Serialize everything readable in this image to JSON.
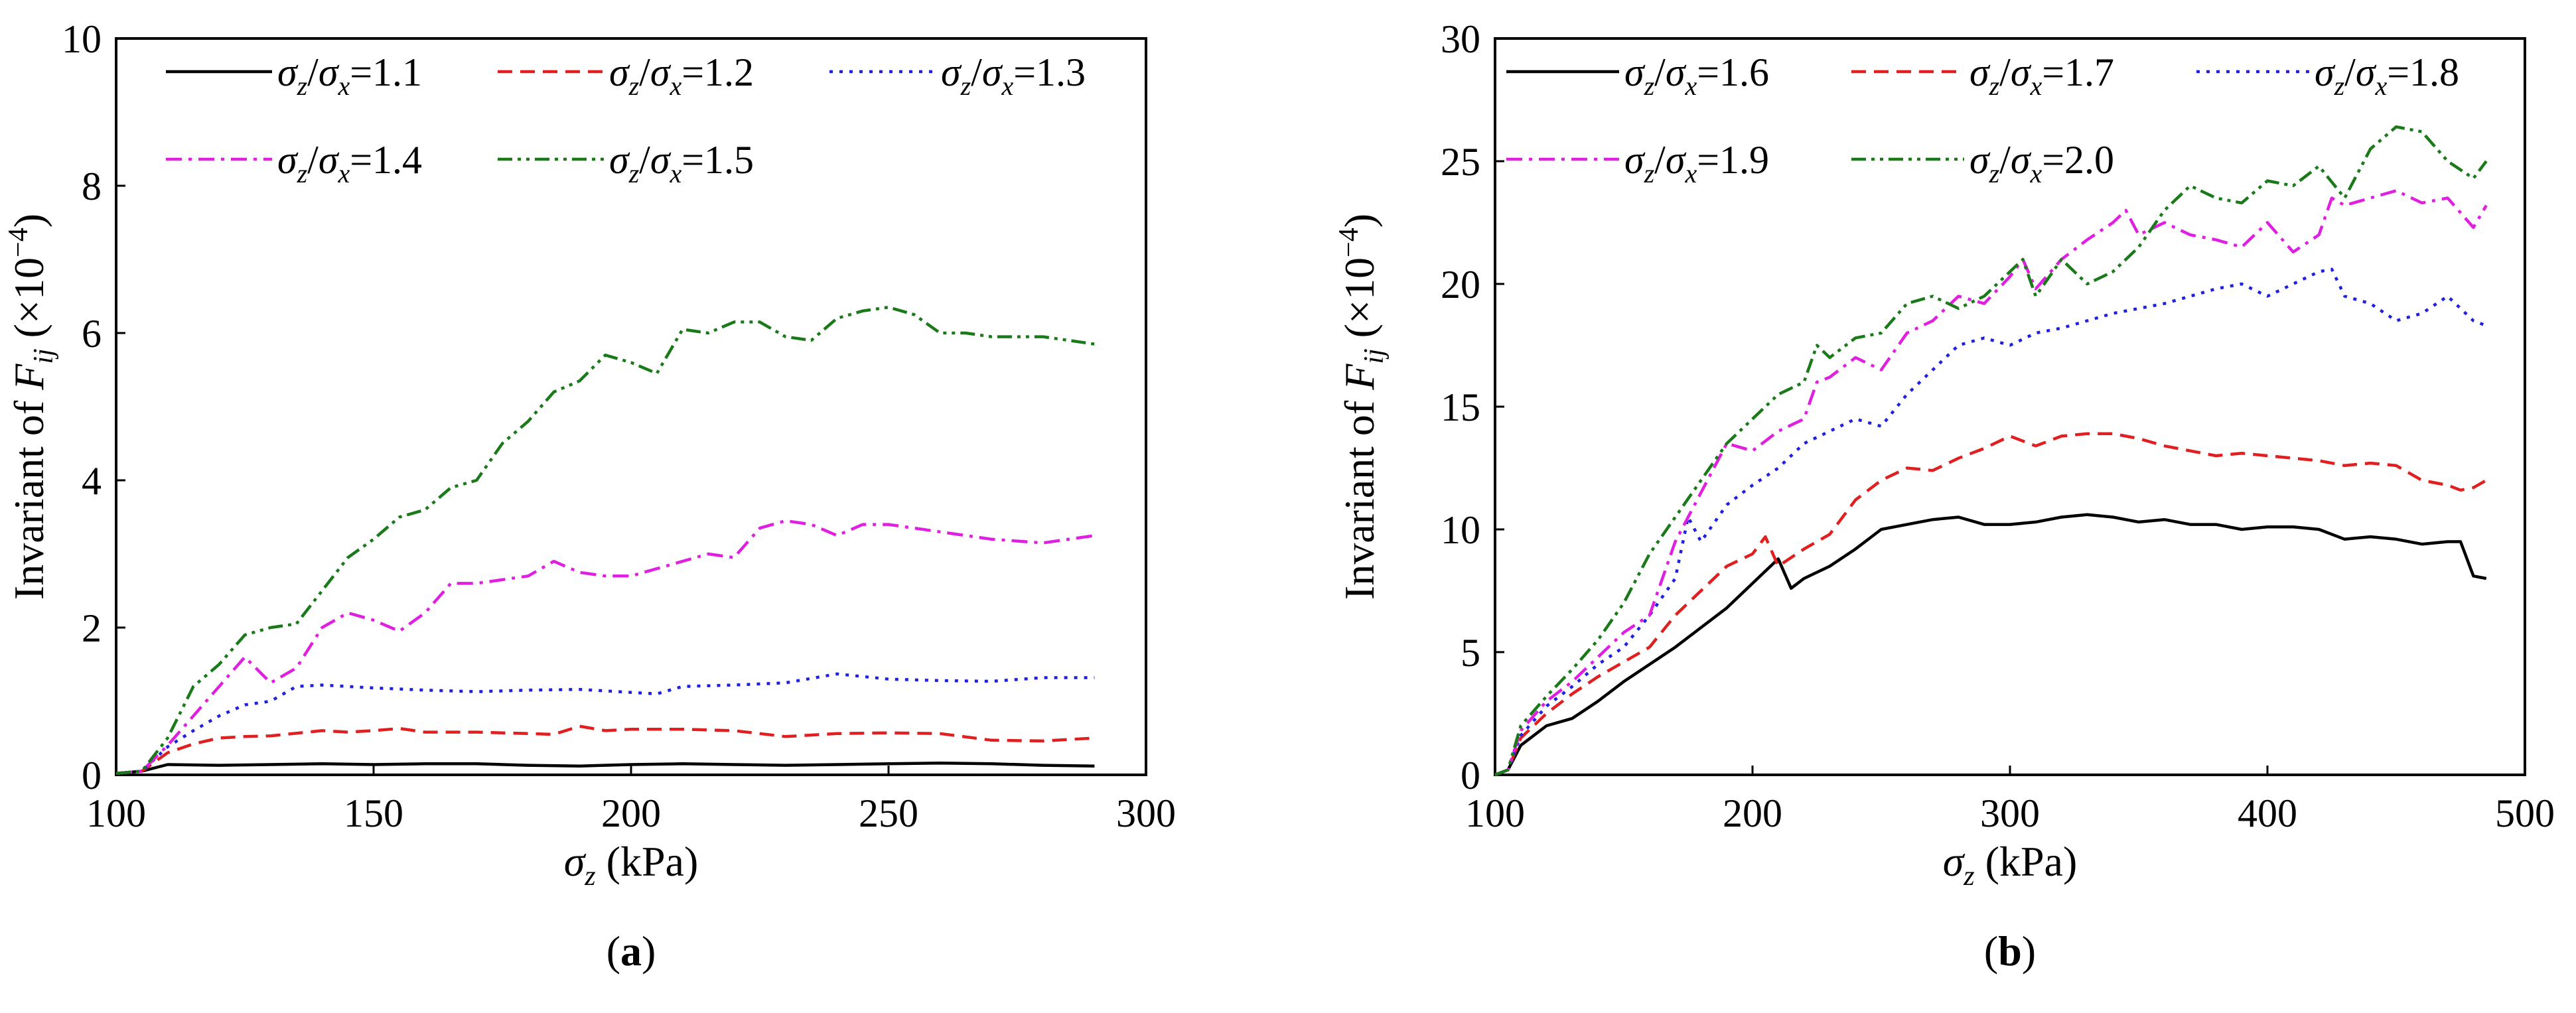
{
  "chart_data": [
    {
      "panel": "a",
      "panel_label": "a",
      "type": "line",
      "xlabel_symbol": "σ",
      "xlabel_sub": "z",
      "xlabel_unit": "(kPa)",
      "ylabel_prefix": "Invariant of F",
      "ylabel_sub": "ij",
      "ylabel_open": "(×10",
      "ylabel_exp": "−4",
      "ylabel_close": ")",
      "xlim": [
        100,
        300
      ],
      "ylim": [
        0,
        10
      ],
      "xticks": [
        "100",
        "150",
        "200",
        "250",
        "300"
      ],
      "yticks": [
        "0",
        "2",
        "4",
        "6",
        "8",
        "10"
      ],
      "legend_layout": [
        3,
        2
      ],
      "series": [
        {
          "name": "σz/σx=1.1",
          "label_value": "=1.1",
          "color": "#000000",
          "dash": "solid",
          "x": [
            100,
            105,
            110,
            120,
            130,
            140,
            150,
            160,
            170,
            180,
            190,
            200,
            210,
            220,
            230,
            240,
            250,
            260,
            270,
            280,
            290
          ],
          "y": [
            0.02,
            0.05,
            0.14,
            0.13,
            0.14,
            0.15,
            0.14,
            0.15,
            0.15,
            0.13,
            0.12,
            0.14,
            0.15,
            0.14,
            0.13,
            0.14,
            0.15,
            0.16,
            0.15,
            0.13,
            0.12
          ]
        },
        {
          "name": "σz/σx=1.2",
          "label_value": "=1.2",
          "color": "#e02020",
          "dash": "dash",
          "x": [
            100,
            105,
            110,
            115,
            120,
            125,
            130,
            140,
            145,
            150,
            155,
            160,
            170,
            180,
            185,
            190,
            195,
            200,
            210,
            220,
            230,
            240,
            250,
            260,
            270,
            280,
            290
          ],
          "y": [
            0.02,
            0.05,
            0.3,
            0.42,
            0.5,
            0.52,
            0.53,
            0.6,
            0.58,
            0.6,
            0.63,
            0.58,
            0.58,
            0.56,
            0.55,
            0.66,
            0.6,
            0.62,
            0.62,
            0.6,
            0.52,
            0.56,
            0.57,
            0.56,
            0.47,
            0.46,
            0.5
          ]
        },
        {
          "name": "σz/σx=1.3",
          "label_value": "=1.3",
          "color": "#2020e0",
          "dash": "dot",
          "x": [
            100,
            105,
            110,
            115,
            120,
            125,
            130,
            135,
            140,
            145,
            150,
            160,
            170,
            180,
            190,
            200,
            205,
            210,
            220,
            230,
            240,
            250,
            260,
            270,
            280,
            290
          ],
          "y": [
            0.02,
            0.05,
            0.38,
            0.6,
            0.8,
            0.95,
            1.0,
            1.2,
            1.22,
            1.2,
            1.18,
            1.15,
            1.13,
            1.15,
            1.16,
            1.12,
            1.1,
            1.2,
            1.22,
            1.25,
            1.37,
            1.3,
            1.28,
            1.27,
            1.32,
            1.32
          ]
        },
        {
          "name": "σz/σx=1.4",
          "label_value": "=1.4",
          "color": "#e020e0",
          "dash": "dashdot",
          "x": [
            100,
            105,
            110,
            115,
            120,
            125,
            130,
            135,
            140,
            145,
            150,
            155,
            160,
            165,
            170,
            180,
            185,
            190,
            195,
            200,
            205,
            210,
            215,
            220,
            225,
            230,
            235,
            240,
            245,
            250,
            260,
            270,
            280,
            290
          ],
          "y": [
            0.02,
            0.05,
            0.4,
            0.8,
            1.2,
            1.6,
            1.25,
            1.45,
            2.0,
            2.2,
            2.1,
            1.95,
            2.2,
            2.6,
            2.6,
            2.7,
            2.9,
            2.75,
            2.7,
            2.7,
            2.8,
            2.9,
            3.0,
            2.95,
            3.35,
            3.45,
            3.4,
            3.25,
            3.4,
            3.4,
            3.3,
            3.2,
            3.15,
            3.25
          ]
        },
        {
          "name": "σz/σx=1.5",
          "label_value": "=1.5",
          "color": "#1a7a1a",
          "dash": "dashdotdot",
          "x": [
            100,
            105,
            110,
            115,
            120,
            125,
            130,
            135,
            140,
            145,
            150,
            155,
            160,
            165,
            170,
            175,
            180,
            185,
            190,
            195,
            200,
            205,
            210,
            215,
            220,
            225,
            230,
            235,
            240,
            245,
            250,
            255,
            260,
            265,
            270,
            275,
            280,
            285,
            290
          ],
          "y": [
            0.02,
            0.05,
            0.5,
            1.2,
            1.5,
            1.9,
            2.0,
            2.05,
            2.5,
            2.95,
            3.2,
            3.5,
            3.6,
            3.9,
            4.0,
            4.5,
            4.8,
            5.2,
            5.35,
            5.7,
            5.6,
            5.45,
            6.05,
            6.0,
            6.15,
            6.15,
            5.95,
            5.9,
            6.2,
            6.3,
            6.35,
            6.25,
            6.0,
            6.0,
            5.95,
            5.95,
            5.95,
            5.9,
            5.85
          ]
        }
      ]
    },
    {
      "panel": "b",
      "panel_label": "b",
      "type": "line",
      "xlabel_symbol": "σ",
      "xlabel_sub": "z",
      "xlabel_unit": "(kPa)",
      "ylabel_prefix": "Invariant of F",
      "ylabel_sub": "ij",
      "ylabel_open": "(×10",
      "ylabel_exp": "−4",
      "ylabel_close": ")",
      "xlim": [
        100,
        500
      ],
      "ylim": [
        0,
        30
      ],
      "xticks": [
        "100",
        "200",
        "300",
        "400",
        "500"
      ],
      "yticks": [
        "0",
        "5",
        "10",
        "15",
        "20",
        "25",
        "30"
      ],
      "legend_layout": [
        3,
        2
      ],
      "series": [
        {
          "name": "σz/σx=1.6",
          "label_value": "=1.6",
          "color": "#000000",
          "dash": "solid",
          "x": [
            100,
            105,
            110,
            120,
            130,
            140,
            150,
            160,
            170,
            180,
            190,
            200,
            210,
            215,
            220,
            230,
            240,
            250,
            260,
            270,
            280,
            290,
            300,
            310,
            320,
            330,
            340,
            350,
            360,
            370,
            380,
            390,
            400,
            410,
            420,
            430,
            440,
            450,
            460,
            470,
            475,
            480,
            485
          ],
          "y": [
            0,
            0.2,
            1.2,
            2.0,
            2.3,
            3.0,
            3.8,
            4.5,
            5.2,
            6.0,
            6.8,
            7.8,
            8.8,
            7.6,
            8.0,
            8.5,
            9.2,
            10.0,
            10.2,
            10.4,
            10.5,
            10.2,
            10.2,
            10.3,
            10.5,
            10.6,
            10.5,
            10.3,
            10.4,
            10.2,
            10.2,
            10.0,
            10.1,
            10.1,
            10.0,
            9.6,
            9.7,
            9.6,
            9.4,
            9.5,
            9.5,
            8.1,
            8.0
          ]
        },
        {
          "name": "σz/σx=1.7",
          "label_value": "=1.7",
          "color": "#e02020",
          "dash": "dash",
          "x": [
            100,
            105,
            110,
            120,
            130,
            140,
            150,
            160,
            170,
            180,
            190,
            200,
            205,
            210,
            220,
            230,
            240,
            250,
            260,
            270,
            280,
            290,
            300,
            310,
            320,
            330,
            340,
            350,
            360,
            370,
            380,
            390,
            400,
            410,
            420,
            430,
            440,
            450,
            460,
            470,
            475,
            480,
            485
          ],
          "y": [
            0,
            0.2,
            1.5,
            2.5,
            3.3,
            4.0,
            4.6,
            5.2,
            6.5,
            7.5,
            8.5,
            9.0,
            9.7,
            8.5,
            9.2,
            9.8,
            11.2,
            12.0,
            12.5,
            12.4,
            12.9,
            13.3,
            13.8,
            13.4,
            13.8,
            13.9,
            13.9,
            13.7,
            13.4,
            13.2,
            13.0,
            13.1,
            13.0,
            12.9,
            12.8,
            12.6,
            12.7,
            12.6,
            12.0,
            11.8,
            11.6,
            11.7,
            12.0
          ]
        },
        {
          "name": "σz/σx=1.8",
          "label_value": "=1.8",
          "color": "#2020e0",
          "dash": "dot",
          "x": [
            100,
            105,
            110,
            120,
            130,
            140,
            150,
            160,
            170,
            175,
            180,
            190,
            200,
            210,
            220,
            230,
            240,
            250,
            260,
            270,
            280,
            290,
            300,
            310,
            320,
            330,
            340,
            350,
            360,
            370,
            380,
            390,
            400,
            410,
            420,
            425,
            430,
            440,
            450,
            460,
            470,
            480,
            485
          ],
          "y": [
            0,
            0.2,
            1.6,
            2.8,
            3.6,
            4.5,
            5.2,
            6.5,
            8.0,
            10.5,
            9.5,
            11.0,
            11.8,
            12.5,
            13.5,
            14.0,
            14.5,
            14.2,
            15.5,
            16.5,
            17.5,
            17.8,
            17.5,
            18.0,
            18.2,
            18.5,
            18.8,
            19.0,
            19.2,
            19.5,
            19.8,
            20.0,
            19.5,
            20.0,
            20.5,
            20.6,
            19.5,
            19.2,
            18.5,
            18.8,
            19.5,
            18.5,
            18.3
          ]
        },
        {
          "name": "σz/σx=1.9",
          "label_value": "=1.9",
          "color": "#e020e0",
          "dash": "dashdot",
          "x": [
            100,
            105,
            110,
            120,
            130,
            140,
            150,
            160,
            170,
            180,
            190,
            200,
            210,
            220,
            225,
            230,
            240,
            250,
            260,
            270,
            280,
            290,
            300,
            305,
            310,
            320,
            330,
            340,
            345,
            350,
            360,
            370,
            380,
            390,
            400,
            410,
            420,
            425,
            430,
            440,
            450,
            460,
            470,
            480,
            485
          ],
          "y": [
            0,
            0.2,
            1.8,
            3.0,
            3.8,
            4.8,
            5.8,
            6.5,
            9.5,
            11.5,
            13.5,
            13.2,
            14.0,
            14.5,
            16.0,
            16.2,
            17.0,
            16.5,
            18.0,
            18.5,
            19.5,
            19.2,
            20.3,
            21.0,
            19.8,
            21.0,
            21.8,
            22.5,
            23.0,
            22.0,
            22.5,
            22.0,
            21.8,
            21.5,
            22.5,
            21.3,
            22.0,
            23.5,
            23.2,
            23.5,
            23.8,
            23.3,
            23.5,
            22.3,
            23.2
          ]
        },
        {
          "name": "σz/σx=2.0",
          "label_value": "=2.0",
          "color": "#1a7a1a",
          "dash": "dashdotdot",
          "x": [
            100,
            105,
            110,
            120,
            130,
            140,
            150,
            160,
            170,
            180,
            190,
            200,
            210,
            220,
            225,
            230,
            240,
            250,
            260,
            270,
            280,
            290,
            300,
            305,
            310,
            320,
            330,
            340,
            350,
            360,
            370,
            380,
            390,
            400,
            410,
            420,
            430,
            440,
            450,
            460,
            470,
            480,
            485
          ],
          "y": [
            0,
            0.2,
            2.0,
            3.2,
            4.3,
            5.5,
            7.0,
            9.0,
            10.5,
            12.0,
            13.5,
            14.5,
            15.5,
            16.0,
            17.5,
            17.0,
            17.8,
            18.0,
            19.2,
            19.5,
            19.0,
            19.5,
            20.5,
            21.0,
            19.5,
            21.0,
            20.0,
            20.5,
            21.5,
            23.0,
            24.0,
            23.5,
            23.3,
            24.2,
            24.0,
            24.8,
            23.5,
            25.5,
            26.4,
            26.2,
            25.0,
            24.3,
            25.0
          ]
        }
      ]
    }
  ]
}
